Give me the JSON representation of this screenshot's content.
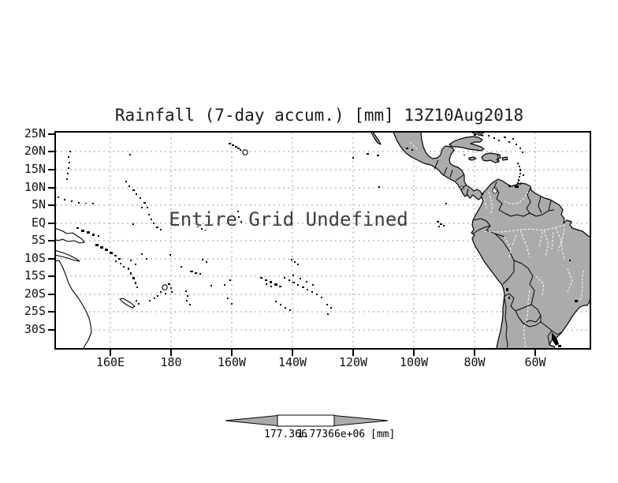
{
  "title": "Rainfall (7-day accum.) [mm] 13Z10Aug2018",
  "map": {
    "undefined_notice": "Entire Grid Undefined"
  },
  "axes": {
    "lat_labels": [
      "25N",
      "20N",
      "15N",
      "10N",
      "5N",
      "EQ",
      "5S",
      "10S",
      "15S",
      "20S",
      "25S",
      "30S"
    ],
    "lon_labels": [
      "160E",
      "180",
      "160W",
      "140W",
      "120W",
      "100W",
      "80W",
      "60W"
    ]
  },
  "colorbar": {
    "left_value": "177.366",
    "right_value": "1.77366e+06",
    "units": "[mm]"
  },
  "colors": {
    "land_fill": "#ababab",
    "gridline": "#b0b0b0",
    "frame": "#000000",
    "river": "#ffffff",
    "bar_arrow_fill": "#ababab",
    "bar_mid_fill": "#ffffff"
  },
  "chart_data": {
    "type": "heatmap",
    "title": "Rainfall (7-day accum.) [mm] 13Z10Aug2018",
    "xlabel": "longitude",
    "ylabel": "latitude",
    "x_ticks": [
      "160E",
      "180",
      "160W",
      "140W",
      "120W",
      "100W",
      "80W",
      "60W"
    ],
    "y_ticks": [
      "25N",
      "20N",
      "15N",
      "10N",
      "5N",
      "EQ",
      "5S",
      "10S",
      "15S",
      "20S",
      "25S",
      "30S"
    ],
    "grid": true,
    "legend_position": "bottom",
    "series": [],
    "annotations": [
      "Entire Grid Undefined"
    ],
    "colorbar_levels": [
      "177.366",
      "1.77366e+06"
    ],
    "colorbar_units": "[mm]"
  }
}
